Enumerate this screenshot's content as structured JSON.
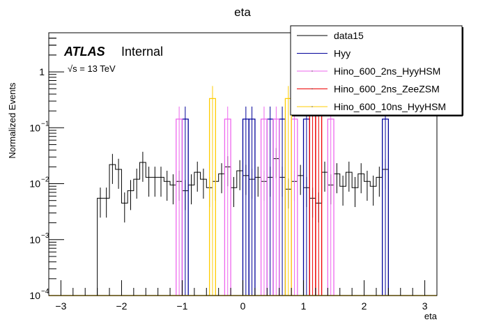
{
  "chart_data": {
    "type": "line",
    "subtype": "histogram-step-log",
    "title": "eta",
    "xlabel": "eta",
    "ylabel": "Normalized Events",
    "xlim": [
      -3.2,
      3.2
    ],
    "ylim": [
      0.0001,
      5
    ],
    "ylog": true,
    "bin_width": 0.1,
    "x_ticks": [
      -3,
      -2,
      -1,
      0,
      1,
      2,
      3
    ],
    "x_tick_labels": [
      "−3",
      "−2",
      "−1",
      "0",
      "1",
      "2",
      "3"
    ],
    "y_ticks": [
      0.0001,
      0.001,
      0.01,
      0.1,
      1
    ],
    "y_tick_labels": [
      {
        "base": "10",
        "exp": "−4"
      },
      {
        "base": "10",
        "exp": "−3"
      },
      {
        "base": "10",
        "exp": "−2"
      },
      {
        "base": "10",
        "exp": "−1"
      },
      {
        "base": "1",
        "exp": ""
      }
    ],
    "annotations": {
      "atlas": "ATLAS",
      "internal": "Internal",
      "energy": "√s = 13 TeV"
    },
    "legend": {
      "placement": "top-right",
      "entries": [
        {
          "name": "data15",
          "color": "#000000"
        },
        {
          "name": "Hyy",
          "color": "#000099"
        },
        {
          "name": "Hino_600_2ns_HyyHSM",
          "color": "#ee66ee"
        },
        {
          "name": "Hino_600_2ns_ZeeZSM",
          "color": "#ee0000"
        },
        {
          "name": "Hino_600_10ns_HyyHSM",
          "color": "#ffcc00"
        }
      ]
    },
    "series": [
      {
        "name": "data15",
        "color": "#000000",
        "style": "step-errorbar",
        "x_low": [
          -2.4,
          -2.3,
          -2.2,
          -2.1,
          -2.0,
          -1.9,
          -1.8,
          -1.7,
          -1.6,
          -1.5,
          -1.4,
          -1.3,
          -1.2,
          -1.1,
          -1.0,
          -0.9,
          -0.8,
          -0.7,
          -0.6,
          -0.5,
          -0.4,
          -0.3,
          -0.2,
          -0.1,
          0.0,
          0.1,
          0.2,
          0.3,
          0.4,
          0.5,
          0.6,
          0.7,
          0.8,
          0.9,
          1.0,
          1.1,
          1.2,
          1.3,
          1.4,
          1.5,
          1.6,
          1.7,
          1.8,
          1.9,
          2.0,
          2.1,
          2.2,
          2.3
        ],
        "values": [
          0.0055,
          0.0055,
          0.022,
          0.018,
          0.0045,
          0.0075,
          0.012,
          0.024,
          0.013,
          0.013,
          0.013,
          0.011,
          0.0095,
          0.011,
          0.0075,
          0.0095,
          0.016,
          0.012,
          0.0085,
          0.011,
          0.015,
          0.02,
          0.0085,
          0.017,
          0.014,
          0.012,
          0.013,
          0.011,
          0.013,
          0.028,
          0.013,
          0.008,
          0.011,
          0.014,
          0.0085,
          0.0055,
          0.0045,
          0.016,
          0.0095,
          0.015,
          0.009,
          0.016,
          0.0085,
          0.015,
          0.011,
          0.009,
          0.013,
          0.018
        ]
      },
      {
        "name": "Hyy",
        "color": "#000099",
        "style": "step",
        "x_centers": [
          -0.95,
          0.05,
          0.15,
          0.45,
          0.65,
          1.05,
          2.35
        ],
        "values": [
          0.143,
          0.143,
          0.143,
          0.143,
          0.143,
          0.143,
          0.143
        ]
      },
      {
        "name": "Hino_600_2ns_HyyHSM",
        "color": "#ee66ee",
        "style": "step",
        "x_centers": [
          -1.05,
          -0.25,
          0.35,
          0.55,
          0.85,
          1.45
        ],
        "values": [
          0.143,
          0.143,
          0.143,
          0.143,
          0.143,
          0.143
        ]
      },
      {
        "name": "Hino_600_2ns_ZeeZSM",
        "color": "#ee0000",
        "style": "step",
        "x_centers": [
          1.15,
          1.25
        ],
        "values": [
          0.5,
          0.5
        ]
      },
      {
        "name": "Hino_600_10ns_HyyHSM",
        "color": "#ffcc00",
        "style": "step",
        "x_centers": [
          -0.5,
          0.75
        ],
        "values": [
          0.333,
          0.333
        ]
      }
    ]
  }
}
